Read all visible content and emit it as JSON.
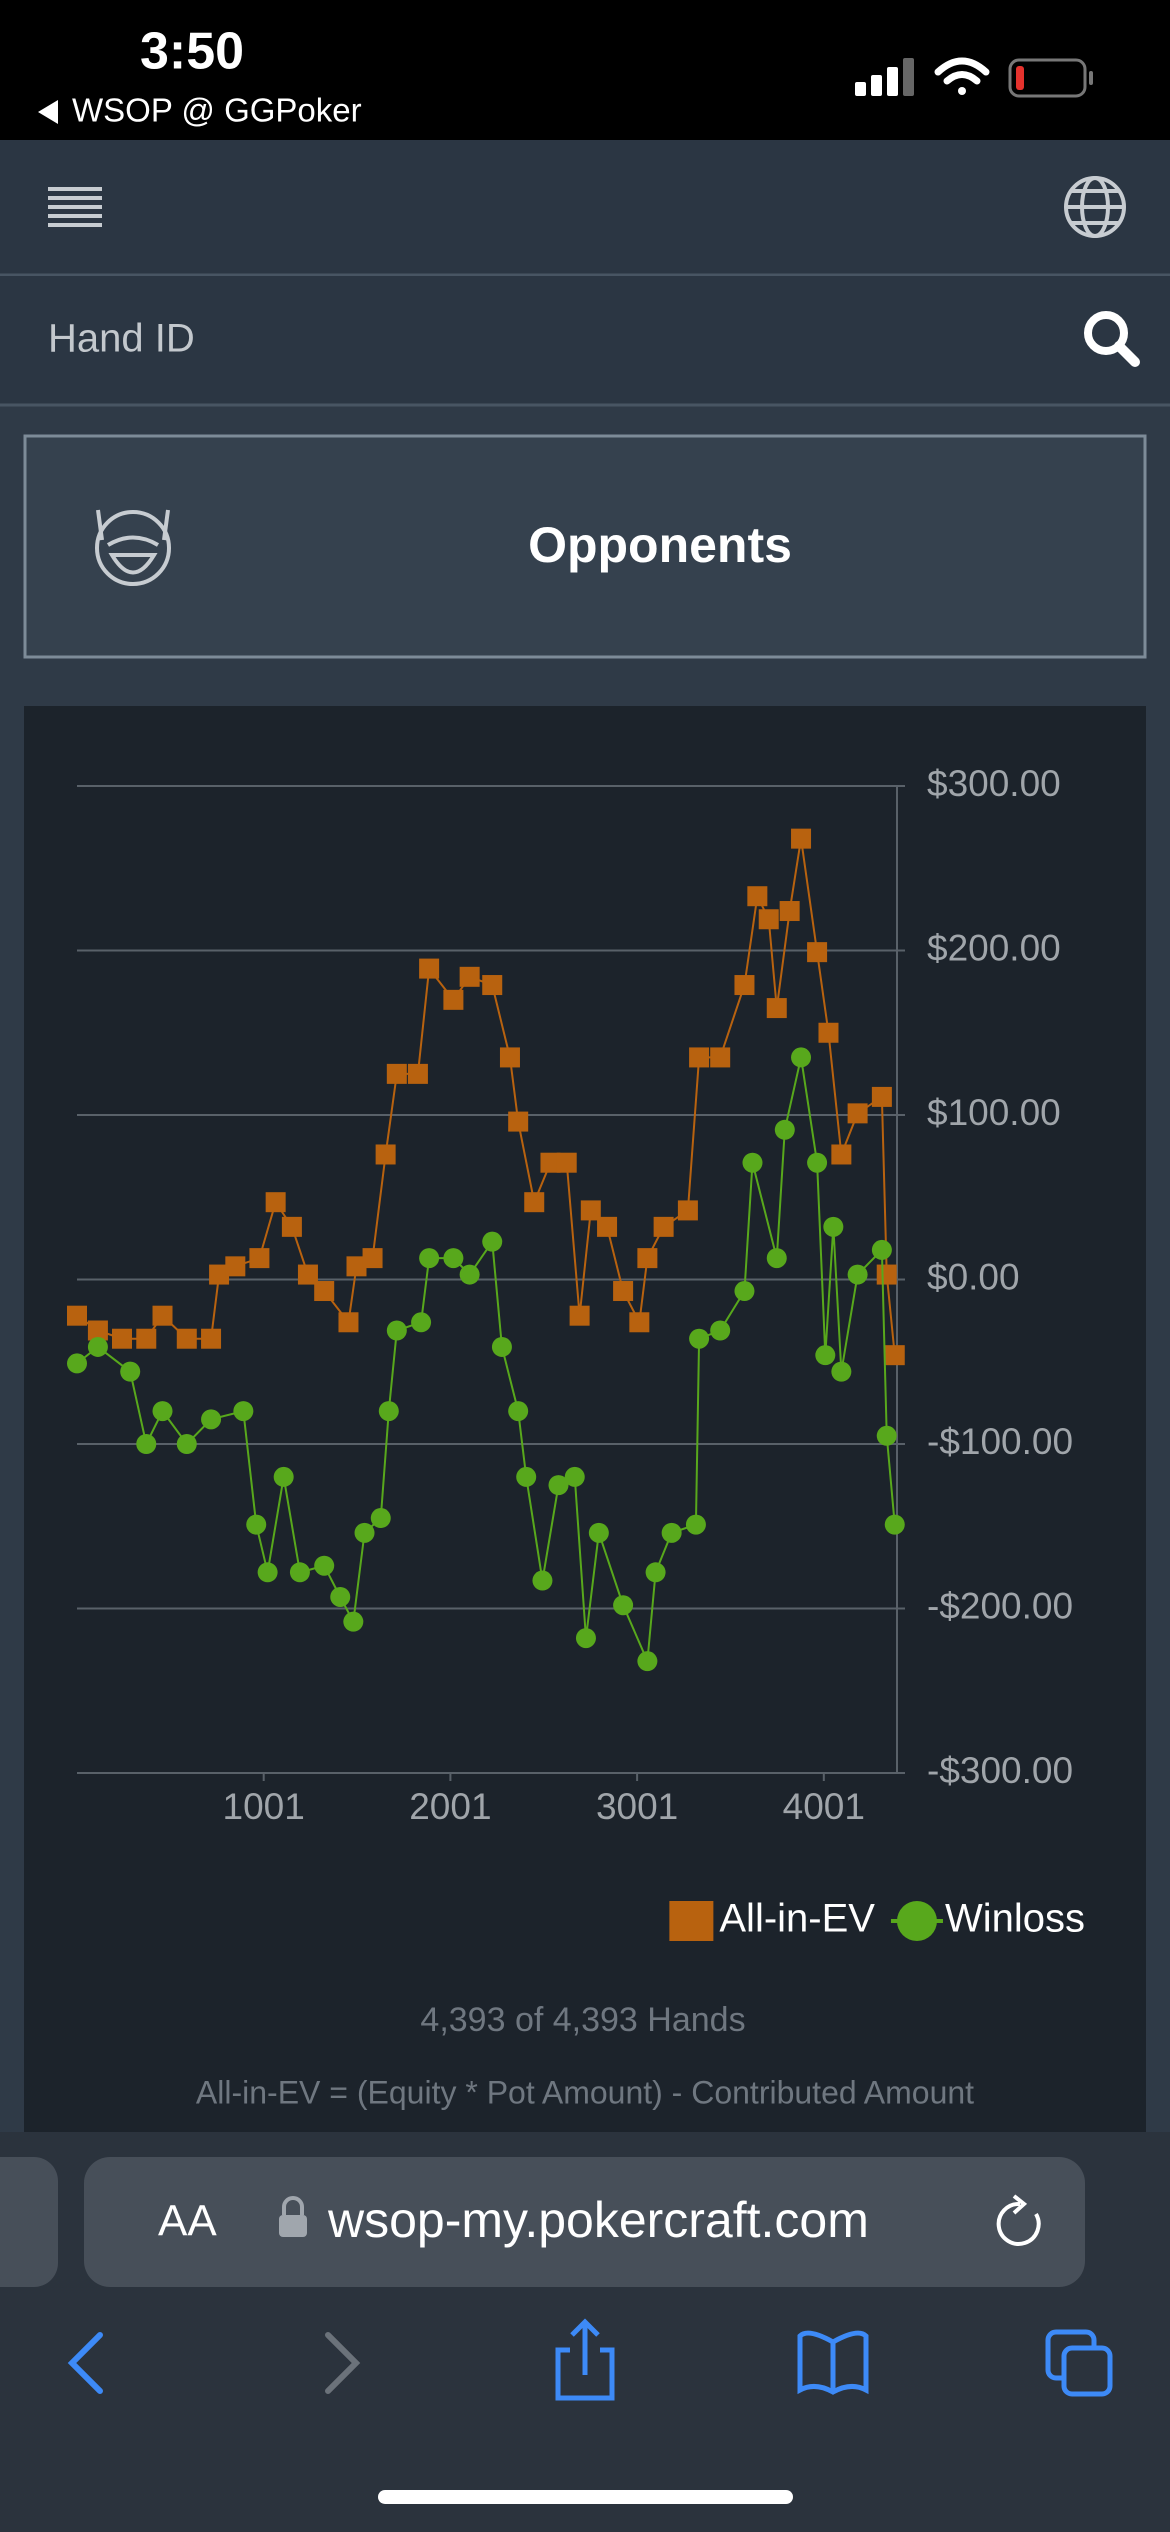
{
  "status": {
    "time": "3:50",
    "back": "WSOP @ GGPoker"
  },
  "search": {
    "placeholder": "Hand ID"
  },
  "opponents": {
    "label": "Opponents"
  },
  "chart_data": {
    "type": "line",
    "xlim": [
      1,
      4393
    ],
    "xticks": [
      1001,
      2001,
      3001,
      4001
    ],
    "ylim": [
      -300,
      300
    ],
    "yticks": [
      {
        "value": -300,
        "label": "-$300.00"
      },
      {
        "value": -200,
        "label": "-$200.00"
      },
      {
        "value": -100,
        "label": "-$100.00"
      },
      {
        "value": 0,
        "label": "$0.00"
      },
      {
        "value": 100,
        "label": "$100.00"
      },
      {
        "value": 200,
        "label": "$200.00"
      },
      {
        "value": 300,
        "label": "$300.00"
      }
    ],
    "grid": true,
    "legend": "bottom-right",
    "series": [
      {
        "name": "All-in-EV",
        "color": "#b8620f",
        "marker": "square",
        "x": [
          1,
          113,
          242,
          372,
          459,
          589,
          719,
          762,
          849,
          978,
          1065,
          1152,
          1238,
          1325,
          1455,
          1498,
          1584,
          1654,
          1714,
          1827,
          1887,
          2017,
          2104,
          2225,
          2320,
          2364,
          2450,
          2537,
          2624,
          2693,
          2753,
          2840,
          2926,
          3013,
          3056,
          3143,
          3273,
          3333,
          3446,
          3576,
          3645,
          3706,
          3749,
          3818,
          3879,
          3965,
          4026,
          4095,
          4182,
          4312,
          4338,
          4381
        ],
        "values": [
          -22,
          -31,
          -36,
          -36,
          -22,
          -36,
          -36,
          3,
          8,
          13,
          47,
          32,
          3,
          -7,
          -26,
          8,
          13,
          76,
          125,
          125,
          189,
          170,
          184,
          179,
          135,
          96,
          47,
          71,
          71,
          -22,
          42,
          32,
          -7,
          -26,
          13,
          32,
          42,
          135,
          135,
          179,
          233,
          219,
          165,
          224,
          268,
          199,
          150,
          76,
          101,
          111,
          3,
          -46
        ]
      },
      {
        "name": "Winloss",
        "color": "#58a81c",
        "marker": "circle",
        "x": [
          1,
          113,
          286,
          372,
          459,
          589,
          719,
          892,
          961,
          1022,
          1108,
          1195,
          1325,
          1411,
          1481,
          1541,
          1628,
          1671,
          1714,
          1844,
          1887,
          2017,
          2104,
          2225,
          2277,
          2364,
          2407,
          2494,
          2580,
          2667,
          2727,
          2796,
          2926,
          3056,
          3100,
          3186,
          3316,
          3333,
          3446,
          3576,
          3619,
          3749,
          3792,
          3879,
          3965,
          4009,
          4052,
          4095,
          4182,
          4312,
          4338,
          4381
        ],
        "values": [
          -51,
          -41,
          -56,
          -100,
          -80,
          -100,
          -85,
          -80,
          -149,
          -178,
          -120,
          -178,
          -174,
          -193,
          -208,
          -154,
          -145,
          -80,
          -31,
          -26,
          13,
          13,
          3,
          23,
          -41,
          -80,
          -120,
          -183,
          -125,
          -120,
          -218,
          -154,
          -198,
          -232,
          -178,
          -154,
          -149,
          -36,
          -31,
          -7,
          71,
          13,
          91,
          135,
          71,
          -46,
          32,
          -56,
          3,
          18,
          -95,
          -149
        ]
      }
    ]
  },
  "footer": {
    "hands": "4,393 of 4,393 Hands",
    "formula": "All-in-EV = (Equity * Pot Amount) - Contributed Amount"
  },
  "browser": {
    "aa": "AA",
    "url": "wsop-my.pokercraft.com"
  }
}
